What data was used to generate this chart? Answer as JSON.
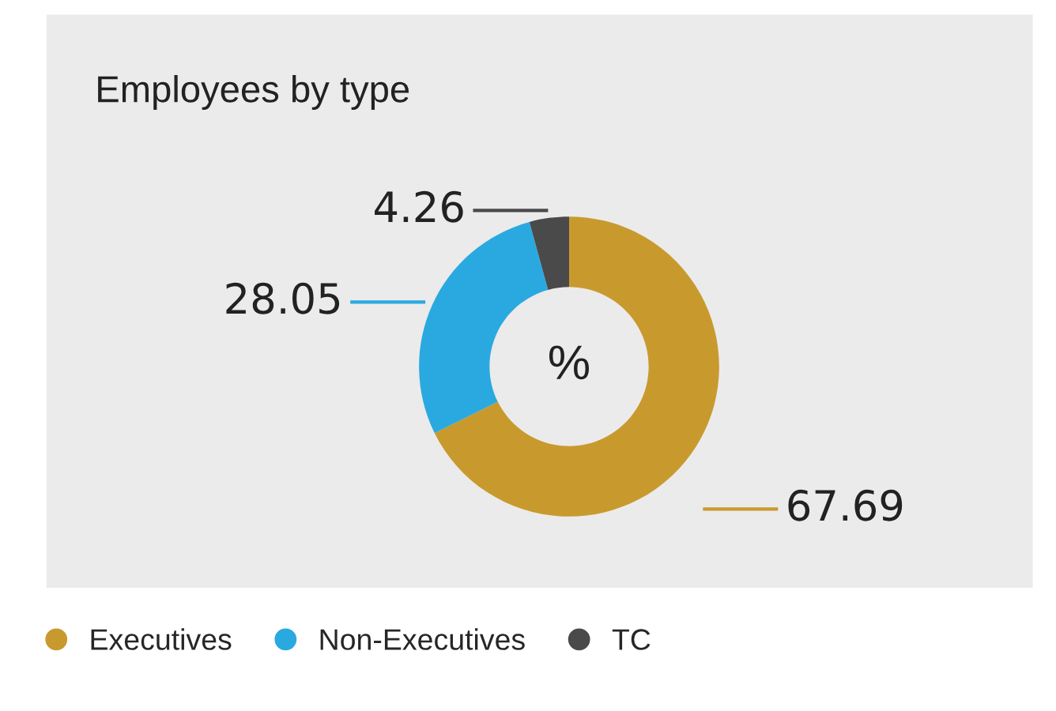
{
  "chart_data": {
    "type": "donut",
    "title": "Employees by type",
    "categories": [
      "Executives",
      "Non-Executives",
      "TC"
    ],
    "values": [
      67.69,
      28.05,
      4.26
    ],
    "colors": [
      "#c89a2e",
      "#2aa9e0",
      "#4a4a4a"
    ],
    "data_labels": true,
    "annotations": [
      "%"
    ],
    "legend": "bottom left"
  }
}
